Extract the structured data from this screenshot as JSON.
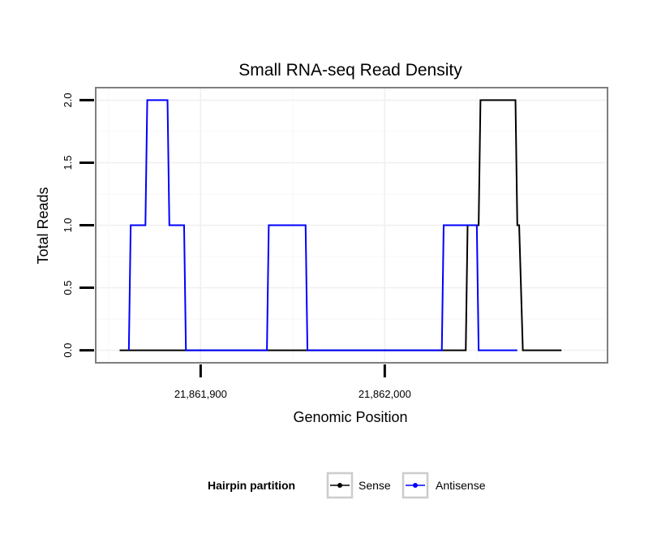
{
  "chart_data": {
    "type": "line",
    "title": "Small RNA-seq Read Density",
    "xlabel": "Genomic Position",
    "ylabel": "Total Reads",
    "xlim": [
      21861843,
      21862121
    ],
    "ylim": [
      -0.1,
      2.1
    ],
    "x_ticks": [
      21861900,
      21862000
    ],
    "x_tick_labels": [
      "21,861,900",
      "21,862,000"
    ],
    "y_ticks": [
      0.0,
      0.5,
      1.0,
      1.5,
      2.0
    ],
    "y_tick_labels": [
      "0.0",
      "0.5",
      "1.0",
      "1.5",
      "2.0"
    ],
    "grid": true,
    "legend_title": "Hairpin partition",
    "legend_position": "bottom",
    "series": [
      {
        "name": "Sense",
        "color": "#000000",
        "points": [
          [
            21861856,
            0
          ],
          [
            21862044,
            0
          ],
          [
            21862045,
            1
          ],
          [
            21862051,
            1
          ],
          [
            21862052,
            2
          ],
          [
            21862071,
            2
          ],
          [
            21862072,
            1
          ],
          [
            21862073,
            1
          ],
          [
            21862075,
            0
          ],
          [
            21862096,
            0
          ]
        ]
      },
      {
        "name": "Antisense",
        "color": "#0000ff",
        "points": [
          [
            21861861,
            0
          ],
          [
            21861862,
            1
          ],
          [
            21861870,
            1
          ],
          [
            21861871,
            2
          ],
          [
            21861882,
            2
          ],
          [
            21861883,
            1
          ],
          [
            21861891,
            1
          ],
          [
            21861892,
            0
          ],
          [
            21861936,
            0
          ],
          [
            21861937,
            1
          ],
          [
            21861957,
            1
          ],
          [
            21861958,
            0
          ],
          [
            21862031,
            0
          ],
          [
            21862032,
            1
          ],
          [
            21862050,
            1
          ],
          [
            21862051,
            0
          ],
          [
            21862072,
            0
          ]
        ]
      }
    ]
  }
}
